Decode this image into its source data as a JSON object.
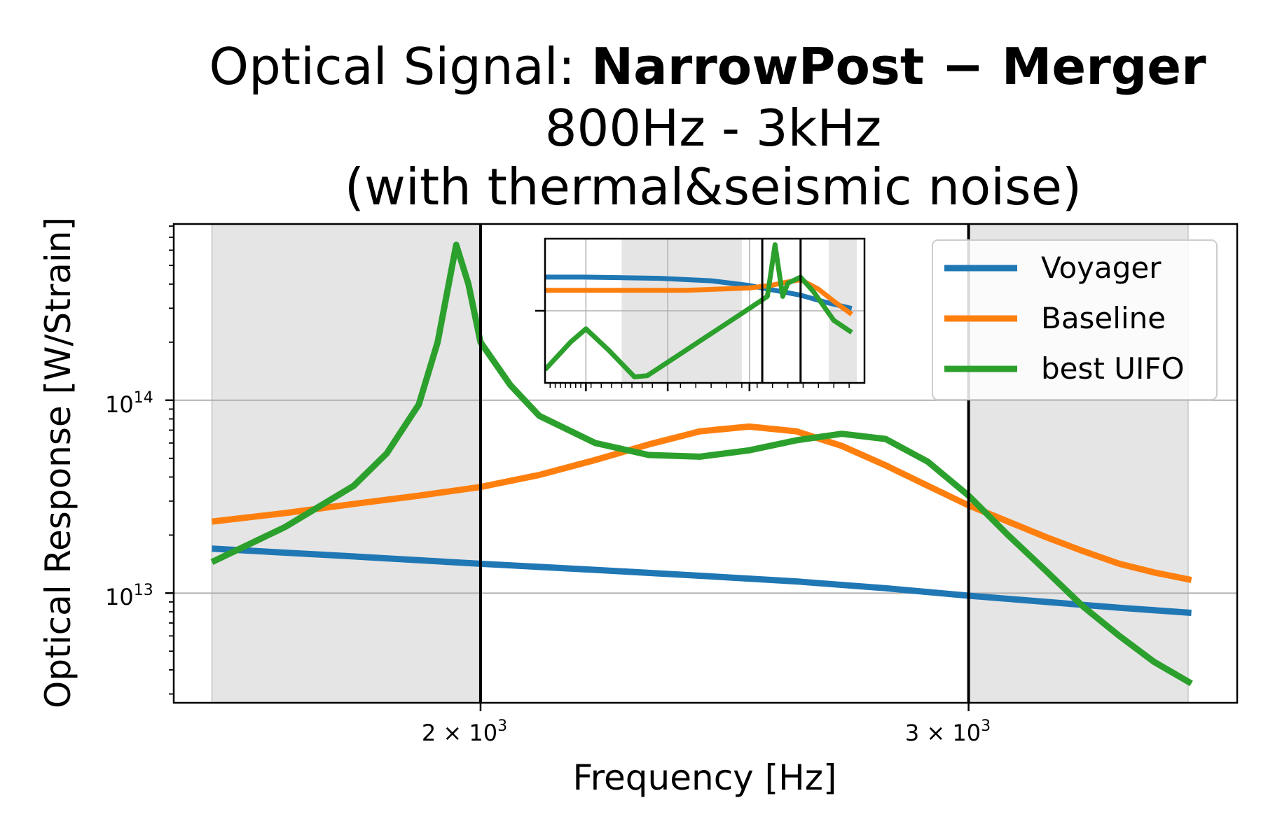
{
  "chart_data": {
    "type": "line",
    "title": {
      "line1_prefix": "Optical Signal: ",
      "line1_bold": "NarrowPost − Merger",
      "line2": "800Hz - 3kHz",
      "line3": "(with thermal&seismic noise)"
    },
    "xlabel": "Frequency [Hz]",
    "ylabel": "Optical Response [W/Strain]",
    "x_scale": "log",
    "y_scale": "log",
    "xlim": [
      1550,
      3750
    ],
    "ylim": [
      2700000000000.0,
      820000000000000.0
    ],
    "x_ticks": [
      {
        "value": 2000,
        "label_base": "2 × 10",
        "label_exp": "3"
      },
      {
        "value": 3000,
        "label_base": "3 × 10",
        "label_exp": "3"
      }
    ],
    "y_ticks": [
      {
        "value": 10000000000000.0,
        "label_base": "10",
        "label_exp": "13"
      },
      {
        "value": 100000000000000.0,
        "label_base": "10",
        "label_exp": "14"
      }
    ],
    "grid": true,
    "shaded_regions": [
      [
        1600,
        2000
      ],
      [
        3000,
        3600
      ]
    ],
    "vertical_lines": [
      2000,
      3000
    ],
    "legend_position": "top-right",
    "series": [
      {
        "name": "Voyager",
        "color": "#1f77b4",
        "x": [
          1600,
          1800,
          2000,
          2200,
          2400,
          2600,
          2800,
          3000,
          3200,
          3400,
          3610
        ],
        "y": [
          17000000000000.0,
          15500000000000.0,
          14200000000000.0,
          13200000000000.0,
          12300000000000.0,
          11500000000000.0,
          10600000000000.0,
          9700000000000.0,
          9000000000000.0,
          8400000000000.0,
          7900000000000.0
        ]
      },
      {
        "name": "Baseline",
        "color": "#ff7f0e",
        "x": [
          1600,
          1700,
          1800,
          1900,
          2000,
          2100,
          2200,
          2300,
          2400,
          2500,
          2600,
          2700,
          2800,
          2900,
          3000,
          3100,
          3200,
          3300,
          3400,
          3500,
          3610
        ],
        "y": [
          23500000000000.0,
          26000000000000.0,
          29000000000000.0,
          32000000000000.0,
          35500000000000.0,
          41000000000000.0,
          49000000000000.0,
          59000000000000.0,
          69000000000000.0,
          73000000000000.0,
          69000000000000.0,
          58000000000000.0,
          46000000000000.0,
          36000000000000.0,
          28500000000000.0,
          23500000000000.0,
          19500000000000.0,
          16500000000000.0,
          14200000000000.0,
          12800000000000.0,
          11700000000000.0
        ]
      },
      {
        "name": "best UIFO",
        "color": "#2ca02c",
        "x": [
          1600,
          1700,
          1800,
          1850,
          1900,
          1930,
          1960,
          1980,
          2000,
          2050,
          2100,
          2200,
          2300,
          2400,
          2500,
          2600,
          2700,
          2800,
          2900,
          3000,
          3100,
          3200,
          3300,
          3400,
          3500,
          3610
        ],
        "y": [
          14500000000000.0,
          22000000000000.0,
          36000000000000.0,
          53000000000000.0,
          95000000000000.0,
          200000000000000.0,
          640000000000000.0,
          400000000000000.0,
          200000000000000.0,
          120000000000000.0,
          83000000000000.0,
          60000000000000.0,
          52000000000000.0,
          51000000000000.0,
          55000000000000.0,
          62000000000000.0,
          67000000000000.0,
          63000000000000.0,
          48000000000000.0,
          32000000000000.0,
          20000000000000.0,
          13000000000000.0,
          8500000000000.0,
          6000000000000.0,
          4400000000000.0,
          3400000000000.0
        ]
      }
    ],
    "inset": {
      "x_scale": "log",
      "y_scale": "log",
      "grid": true,
      "shaded_regions": [
        [
          0.35,
          0.82
        ],
        [
          1.16,
          1.27
        ]
      ],
      "vertical_lines": [
        0.9,
        1.05
      ],
      "series": [
        {
          "name": "Voyager",
          "color": "#1f77b4",
          "x": [
            0.05,
            0.2,
            0.5,
            0.7,
            0.85,
            0.95,
            1.05,
            1.15,
            1.25
          ],
          "y": [
            0.88,
            0.88,
            0.87,
            0.85,
            0.81,
            0.77,
            0.73,
            0.67,
            0.62
          ]
        },
        {
          "name": "Baseline",
          "color": "#ff7f0e",
          "x": [
            0.05,
            0.3,
            0.6,
            0.85,
            0.93,
            1.0,
            1.05,
            1.12,
            1.18,
            1.25
          ],
          "y": [
            0.77,
            0.77,
            0.77,
            0.79,
            0.81,
            0.84,
            0.86,
            0.78,
            0.68,
            0.57
          ]
        },
        {
          "name": "best UIFO",
          "color": "#2ca02c",
          "x": [
            0.05,
            0.15,
            0.21,
            0.3,
            0.4,
            0.45,
            0.55,
            0.7,
            0.85,
            0.92,
            0.95,
            0.98,
            1.0,
            1.05,
            1.1,
            1.18,
            1.25
          ],
          "y": [
            0.11,
            0.34,
            0.45,
            0.27,
            0.05,
            0.06,
            0.2,
            0.41,
            0.62,
            0.72,
            1.15,
            0.72,
            0.83,
            0.88,
            0.76,
            0.52,
            0.42
          ]
        }
      ]
    }
  }
}
